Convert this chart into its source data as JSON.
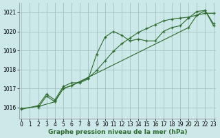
{
  "xlabel": "Graphe pression niveau de la mer (hPa)",
  "line1_x": [
    0,
    2,
    3,
    4,
    5,
    6,
    7,
    8,
    9,
    10,
    11,
    12,
    13,
    14,
    15,
    16,
    17,
    18,
    19,
    20,
    21,
    22,
    23
  ],
  "line1_y": [
    1015.9,
    1016.1,
    1016.7,
    1016.4,
    1017.1,
    1017.3,
    1017.3,
    1017.5,
    1018.8,
    1019.7,
    1020.0,
    1019.8,
    1019.5,
    1019.6,
    1019.5,
    1019.5,
    1020.0,
    1020.2,
    1020.3,
    1020.7,
    1021.05,
    1021.1,
    1020.3
  ],
  "line2_x": [
    2,
    3,
    4,
    5,
    6,
    20,
    21,
    22,
    23
  ],
  "line2_y": [
    1016.0,
    1016.6,
    1016.3,
    1017.0,
    1017.15,
    1020.2,
    1020.85,
    1021.1,
    1020.4
  ],
  "line3_x": [
    0,
    2,
    4,
    5,
    6,
    7,
    8,
    9,
    10,
    11,
    12,
    13,
    14,
    15,
    16,
    17,
    18,
    19,
    20,
    21,
    22,
    23
  ],
  "line3_y": [
    1015.95,
    1016.05,
    1016.3,
    1017.0,
    1017.15,
    1017.35,
    1017.55,
    1017.95,
    1018.45,
    1018.95,
    1019.35,
    1019.65,
    1019.95,
    1020.15,
    1020.35,
    1020.55,
    1020.65,
    1020.7,
    1020.75,
    1020.85,
    1020.95,
    1020.95
  ],
  "bg_color": "#cce8e8",
  "line_color": "#2d6a2d",
  "grid_color": "#99bbbb",
  "ylim": [
    1015.4,
    1021.5
  ],
  "yticks": [
    1016,
    1017,
    1018,
    1019,
    1020,
    1021
  ],
  "xlim": [
    -0.3,
    23.3
  ],
  "xticks": [
    0,
    1,
    2,
    3,
    4,
    5,
    6,
    7,
    8,
    9,
    10,
    11,
    12,
    13,
    14,
    15,
    16,
    17,
    18,
    19,
    20,
    21,
    22,
    23
  ],
  "markersize": 3.5,
  "linewidth": 0.8,
  "tick_fontsize": 5.5,
  "xlabel_fontsize": 6.5
}
